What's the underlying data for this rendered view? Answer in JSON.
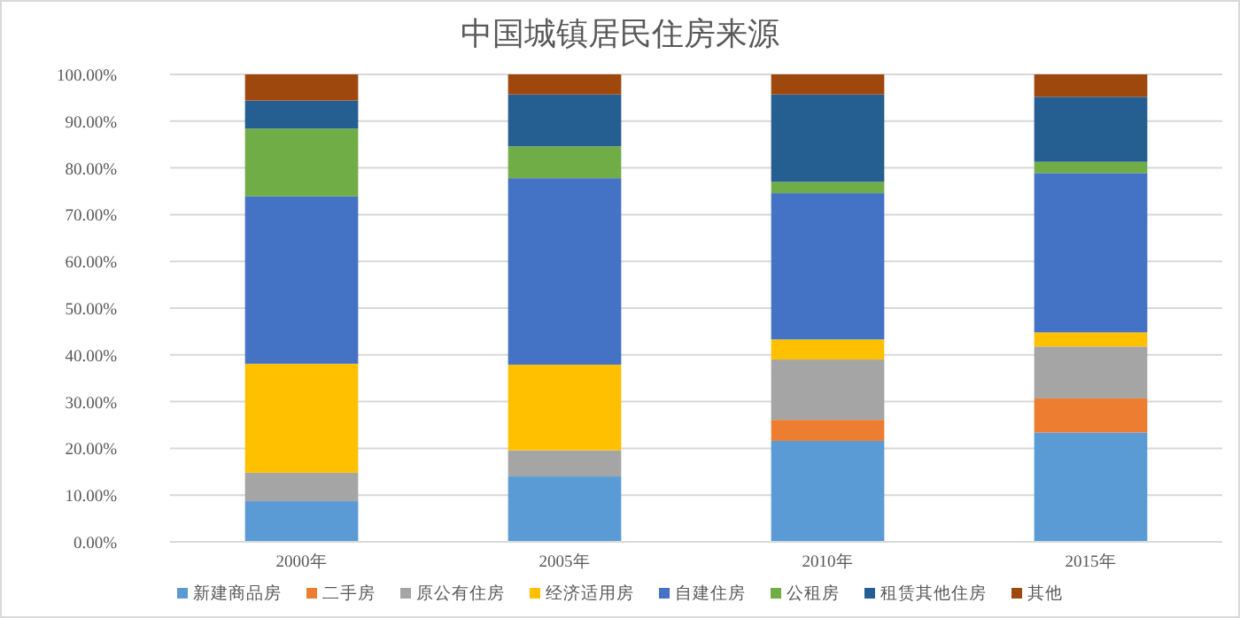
{
  "chart_data": {
    "type": "bar",
    "title": "中国城镇居民住房来源",
    "stacked": true,
    "categories": [
      "2000年",
      "2005年",
      "2010年",
      "2015年"
    ],
    "series": [
      {
        "name": "新建商品房",
        "color": "#5b9bd5",
        "values": [
          8.7,
          14.0,
          21.6,
          23.4
        ]
      },
      {
        "name": "二手房",
        "color": "#ed7d31",
        "values": [
          0,
          0,
          4.5,
          7.3
        ]
      },
      {
        "name": "原公有住房",
        "color": "#a5a5a5",
        "values": [
          6.1,
          5.6,
          12.9,
          11.1
        ]
      },
      {
        "name": "经济适用房",
        "color": "#ffc000",
        "values": [
          23.3,
          18.3,
          4.3,
          3.0
        ]
      },
      {
        "name": "自建住房",
        "color": "#4472c4",
        "values": [
          35.8,
          39.9,
          31.3,
          34.1
        ]
      },
      {
        "name": "公租房",
        "color": "#70ad47",
        "values": [
          14.5,
          6.8,
          2.4,
          2.4
        ]
      },
      {
        "name": "租赁其他住房",
        "color": "#255e91",
        "values": [
          6.0,
          11.1,
          18.7,
          13.9
        ]
      },
      {
        "name": "其他",
        "color": "#9e480e",
        "values": [
          5.6,
          4.3,
          4.3,
          4.8
        ]
      }
    ],
    "ylim": [
      0,
      100
    ],
    "yticks": [
      {
        "value": 0,
        "label": "0.00%"
      },
      {
        "value": 10,
        "label": "10.00%"
      },
      {
        "value": 20,
        "label": "20.00%"
      },
      {
        "value": 30,
        "label": "30.00%"
      },
      {
        "value": 40,
        "label": "40.00%"
      },
      {
        "value": 50,
        "label": "50.00%"
      },
      {
        "value": 60,
        "label": "60.00%"
      },
      {
        "value": 70,
        "label": "70.00%"
      },
      {
        "value": 80,
        "label": "80.00%"
      },
      {
        "value": 90,
        "label": "90.00%"
      },
      {
        "value": 100,
        "label": "100.00%"
      }
    ],
    "grid": "y",
    "legend": "bottom"
  }
}
